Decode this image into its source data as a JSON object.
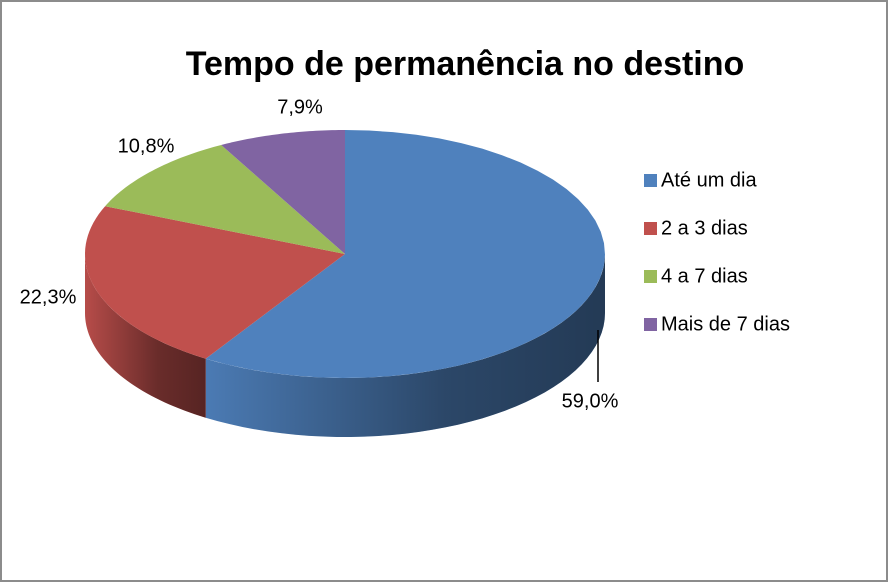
{
  "chart_data": {
    "type": "pie",
    "title": "Tempo de permanência no destino",
    "categories": [
      "Até um dia",
      "2 a 3 dias",
      "4 a 7 dias",
      "Mais de 7 dias"
    ],
    "values": [
      59.0,
      22.3,
      10.8,
      7.9
    ],
    "value_labels": [
      "59,0%",
      "22,3%",
      "10,8%",
      "7,9%"
    ],
    "colors": [
      "#4f81bd",
      "#c0504d",
      "#9bbb59",
      "#8064a2"
    ],
    "legend": "right"
  }
}
